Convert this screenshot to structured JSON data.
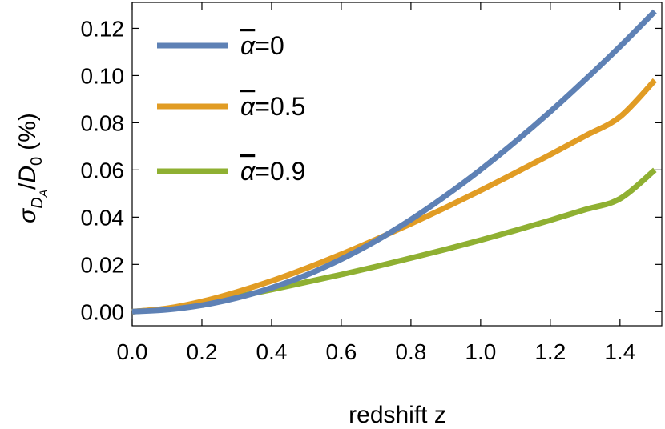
{
  "chart_data": {
    "type": "line",
    "title": "",
    "xlabel": "redshift z",
    "ylabel": {
      "sigma": "σ",
      "sub_D": "D",
      "sub_A": "A",
      "slash": "/",
      "D": "D",
      "sub_0": "0",
      "unit": "(%)"
    },
    "xlim": [
      0.0,
      1.52
    ],
    "ylim": [
      -0.006,
      0.131
    ],
    "xticks": [
      0.0,
      0.2,
      0.4,
      0.6,
      0.8,
      1.0,
      1.2,
      1.4
    ],
    "xtick_labels": [
      "0.0",
      "0.2",
      "0.4",
      "0.6",
      "0.8",
      "1.0",
      "1.2",
      "1.4"
    ],
    "yticks": [
      0.0,
      0.02,
      0.04,
      0.06,
      0.08,
      0.1,
      0.12
    ],
    "ytick_labels": [
      "0.00",
      "0.02",
      "0.04",
      "0.06",
      "0.08",
      "0.10",
      "0.12"
    ],
    "legend_position": "top-left",
    "series": [
      {
        "name": "ᾱ=0",
        "legend_symbol": "α",
        "legend_suffix": "=0",
        "color": "#5E81B5",
        "x": [
          0.0,
          0.1,
          0.2,
          0.3,
          0.4,
          0.5,
          0.6,
          0.7,
          0.8,
          0.9,
          1.0,
          1.1,
          1.2,
          1.3,
          1.4,
          1.5
        ],
        "y": [
          0.0,
          0.0008,
          0.0027,
          0.0058,
          0.0101,
          0.0155,
          0.0222,
          0.03,
          0.039,
          0.0491,
          0.0601,
          0.072,
          0.0847,
          0.0982,
          0.1123,
          0.1272
        ]
      },
      {
        "name": "ᾱ=0.5",
        "legend_symbol": "α",
        "legend_suffix": "=0.5",
        "color": "#E19C24",
        "x": [
          0.0,
          0.1,
          0.2,
          0.3,
          0.4,
          0.5,
          0.6,
          0.7,
          0.8,
          0.9,
          1.0,
          1.1,
          1.2,
          1.3,
          1.4,
          1.5
        ],
        "y": [
          0.0,
          0.0014,
          0.0043,
          0.0083,
          0.013,
          0.0184,
          0.0243,
          0.0306,
          0.0372,
          0.0441,
          0.0513,
          0.0588,
          0.0665,
          0.0744,
          0.0825,
          0.098
        ]
      },
      {
        "name": "ᾱ=0.9",
        "legend_symbol": "α",
        "legend_suffix": "=0.9",
        "color": "#8FB032",
        "x": [
          0.0,
          0.1,
          0.2,
          0.3,
          0.4,
          0.5,
          0.6,
          0.7,
          0.8,
          0.9,
          1.0,
          1.1,
          1.2,
          1.3,
          1.4,
          1.5
        ],
        "y": [
          0.0,
          0.0012,
          0.0035,
          0.0063,
          0.0093,
          0.0125,
          0.0157,
          0.0191,
          0.0227,
          0.0264,
          0.0303,
          0.0344,
          0.0387,
          0.0432,
          0.0478,
          0.06
        ]
      }
    ]
  }
}
